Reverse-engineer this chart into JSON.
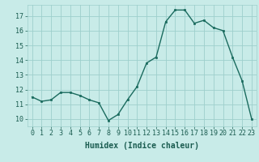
{
  "x": [
    0,
    1,
    2,
    3,
    4,
    5,
    6,
    7,
    8,
    9,
    10,
    11,
    12,
    13,
    14,
    15,
    16,
    17,
    18,
    19,
    20,
    21,
    22,
    23
  ],
  "y": [
    11.5,
    11.2,
    11.3,
    11.8,
    11.8,
    11.6,
    11.3,
    11.1,
    9.9,
    10.3,
    11.3,
    12.2,
    13.8,
    14.2,
    16.6,
    17.4,
    17.4,
    16.5,
    16.7,
    16.2,
    16.0,
    14.2,
    12.6,
    10.0
  ],
  "line_color": "#1a6b5e",
  "marker_color": "#1a6b5e",
  "bg_color": "#c8ebe8",
  "grid_color": "#9ecfcc",
  "xlabel": "Humidex (Indice chaleur)",
  "xlim": [
    -0.5,
    23.5
  ],
  "ylim": [
    9.5,
    17.75
  ],
  "yticks": [
    10,
    11,
    12,
    13,
    14,
    15,
    16,
    17
  ],
  "xticks": [
    0,
    1,
    2,
    3,
    4,
    5,
    6,
    7,
    8,
    9,
    10,
    11,
    12,
    13,
    14,
    15,
    16,
    17,
    18,
    19,
    20,
    21,
    22,
    23
  ],
  "xtick_labels": [
    "0",
    "1",
    "2",
    "3",
    "4",
    "5",
    "6",
    "7",
    "8",
    "9",
    "10",
    "11",
    "12",
    "13",
    "14",
    "15",
    "16",
    "17",
    "18",
    "19",
    "20",
    "21",
    "22",
    "23"
  ],
  "tick_fontsize": 6.0,
  "xlabel_fontsize": 7.0,
  "tick_color": "#1a5c50",
  "label_color": "#1a5c50"
}
